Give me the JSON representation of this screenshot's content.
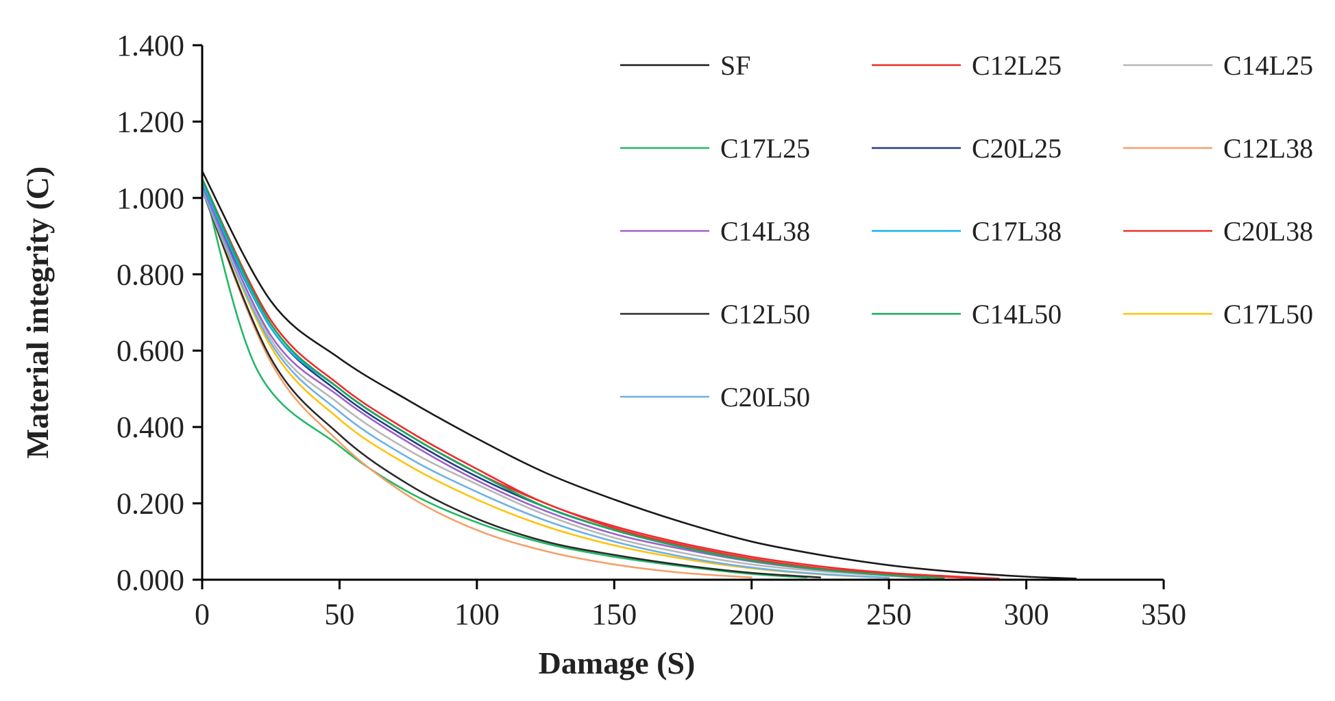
{
  "chart_data": {
    "type": "line",
    "title": "",
    "xlabel": "Damage (S)",
    "ylabel": "Material integrity (C)",
    "xlim": [
      0,
      350
    ],
    "ylim": [
      0,
      1.4
    ],
    "xticks": [
      0,
      50,
      100,
      150,
      200,
      250,
      300,
      350
    ],
    "xtick_labels": [
      "0",
      "50",
      "100",
      "150",
      "200",
      "250",
      "300",
      "350"
    ],
    "yticks": [
      0,
      0.2,
      0.4,
      0.6,
      0.8,
      1.0,
      1.2,
      1.4
    ],
    "ytick_labels": [
      "0.000",
      "0.200",
      "0.400",
      "0.600",
      "0.800",
      "1.000",
      "1.200",
      "1.400"
    ],
    "grid": false,
    "legend_position": "top-right",
    "legend_columns": 3,
    "series": [
      {
        "name": "SF",
        "color": "#1a1a1a",
        "x": [
          0,
          25,
          50,
          75,
          100,
          125,
          150,
          175,
          200,
          225,
          250,
          275,
          300,
          318
        ],
        "y": [
          1.07,
          0.73,
          0.58,
          0.47,
          0.37,
          0.28,
          0.21,
          0.15,
          0.1,
          0.065,
          0.038,
          0.02,
          0.008,
          0.003
        ]
      },
      {
        "name": "C12L25",
        "color": "#ed2b2b",
        "x": [
          0,
          25,
          50,
          75,
          100,
          125,
          150,
          175,
          200,
          225,
          250,
          275,
          290
        ],
        "y": [
          1.05,
          0.68,
          0.51,
          0.39,
          0.29,
          0.2,
          0.14,
          0.095,
          0.06,
          0.035,
          0.018,
          0.008,
          0.003
        ]
      },
      {
        "name": "C14L25",
        "color": "#b7b7b7",
        "x": [
          0,
          25,
          50,
          75,
          100,
          125,
          150,
          175,
          200,
          225,
          250,
          265
        ],
        "y": [
          1.04,
          0.63,
          0.46,
          0.34,
          0.25,
          0.17,
          0.11,
          0.07,
          0.04,
          0.022,
          0.01,
          0.004
        ]
      },
      {
        "name": "C17L25",
        "color": "#22b865",
        "x": [
          0,
          20,
          50,
          75,
          100,
          125,
          150,
          175,
          200,
          220
        ],
        "y": [
          1.05,
          0.55,
          0.35,
          0.23,
          0.15,
          0.095,
          0.06,
          0.035,
          0.015,
          0.006
        ]
      },
      {
        "name": "C20L25",
        "color": "#1f3c88",
        "x": [
          0,
          25,
          50,
          75,
          100,
          125,
          150,
          175,
          200,
          225,
          250,
          265
        ],
        "y": [
          1.03,
          0.66,
          0.49,
          0.37,
          0.27,
          0.19,
          0.13,
          0.085,
          0.05,
          0.028,
          0.013,
          0.005
        ]
      },
      {
        "name": "C12L38",
        "color": "#f4a06a",
        "x": [
          0,
          25,
          50,
          75,
          100,
          125,
          150,
          175,
          200
        ],
        "y": [
          1.02,
          0.57,
          0.36,
          0.22,
          0.13,
          0.075,
          0.04,
          0.018,
          0.006
        ]
      },
      {
        "name": "C14L38",
        "color": "#9d62c8",
        "x": [
          0,
          25,
          50,
          75,
          100,
          125,
          150,
          175,
          200,
          225,
          250,
          260
        ],
        "y": [
          1.03,
          0.64,
          0.48,
          0.36,
          0.26,
          0.18,
          0.12,
          0.08,
          0.048,
          0.026,
          0.012,
          0.006
        ]
      },
      {
        "name": "C17L38",
        "color": "#11b2ee",
        "x": [
          0,
          25,
          50,
          75,
          100,
          125,
          150,
          175,
          200,
          225,
          250,
          265
        ],
        "y": [
          1.04,
          0.66,
          0.5,
          0.38,
          0.28,
          0.19,
          0.13,
          0.085,
          0.05,
          0.028,
          0.013,
          0.005
        ]
      },
      {
        "name": "C20L38",
        "color": "#e8322e",
        "x": [
          0,
          25,
          50,
          75,
          100,
          125,
          150,
          175,
          200,
          225,
          250,
          275,
          285
        ],
        "y": [
          1.05,
          0.67,
          0.5,
          0.38,
          0.28,
          0.2,
          0.135,
          0.09,
          0.055,
          0.03,
          0.015,
          0.006,
          0.003
        ]
      },
      {
        "name": "C12L50",
        "color": "#2a2a2a",
        "x": [
          0,
          25,
          50,
          75,
          100,
          125,
          150,
          175,
          200,
          225
        ],
        "y": [
          1.02,
          0.58,
          0.38,
          0.25,
          0.16,
          0.1,
          0.065,
          0.038,
          0.018,
          0.006
        ]
      },
      {
        "name": "C14L50",
        "color": "#19a85b",
        "x": [
          0,
          25,
          50,
          75,
          100,
          125,
          150,
          175,
          200,
          225,
          250,
          270
        ],
        "y": [
          1.05,
          0.67,
          0.5,
          0.38,
          0.28,
          0.19,
          0.13,
          0.085,
          0.05,
          0.027,
          0.012,
          0.004
        ]
      },
      {
        "name": "C17L50",
        "color": "#ffc20e",
        "x": [
          0,
          25,
          50,
          75,
          100,
          125,
          150,
          175,
          200,
          225,
          250
        ],
        "y": [
          1.02,
          0.61,
          0.42,
          0.3,
          0.21,
          0.14,
          0.09,
          0.055,
          0.03,
          0.014,
          0.005
        ]
      },
      {
        "name": "C20L50",
        "color": "#6cb0e4",
        "x": [
          0,
          25,
          50,
          75,
          100,
          125,
          150,
          175,
          200,
          225,
          250
        ],
        "y": [
          1.02,
          0.62,
          0.44,
          0.32,
          0.23,
          0.155,
          0.1,
          0.06,
          0.032,
          0.015,
          0.005
        ]
      }
    ]
  }
}
